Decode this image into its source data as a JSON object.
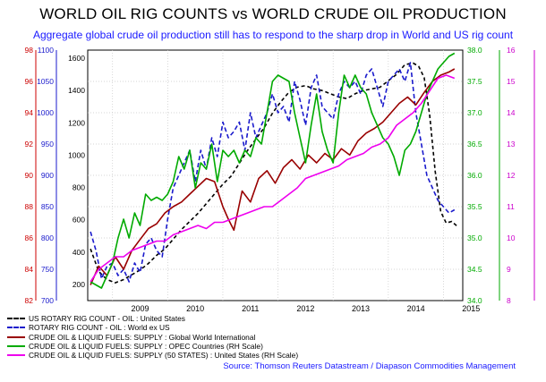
{
  "title": "WORLD OIL RIG COUNTS vs WORLD CRUDE OIL PRODUCTION",
  "subtitle": "Aggregate global crude oil production still has to respond to the sharp drop in World and US rig count",
  "source": "Source: Thomson Reuters Datastream / Diapason Commodities Management",
  "chart_data": {
    "type": "line",
    "x_tick_labels": [
      "2009",
      "2010",
      "2011",
      "2012",
      "2013",
      "2014",
      "2015"
    ],
    "x_range": [
      2008.55,
      2015.35
    ],
    "grid": true,
    "legend_position": "bottom-left",
    "axes": {
      "red_left": {
        "ticks": [
          82,
          84,
          86,
          88,
          90,
          92,
          94,
          96,
          98
        ],
        "range": [
          82,
          98
        ],
        "color": "#cc0000"
      },
      "blue_left": {
        "ticks": [
          700,
          750,
          800,
          850,
          900,
          950,
          1000,
          1050,
          1100
        ],
        "range": [
          700,
          1100
        ],
        "color": "#1a1acc"
      },
      "black_left": {
        "ticks": [
          200,
          400,
          600,
          800,
          1000,
          1200,
          1400,
          1600
        ],
        "range": [
          100,
          1650
        ],
        "color": "#000000"
      },
      "green_right": {
        "ticks": [
          34.0,
          34.5,
          35.0,
          35.5,
          36.0,
          36.5,
          37.0,
          37.5,
          38.0
        ],
        "range": [
          34.0,
          38.0
        ],
        "color": "#00aa00"
      },
      "magenta_right": {
        "ticks": [
          8,
          9,
          10,
          11,
          12,
          13,
          14,
          15,
          16
        ],
        "range": [
          8,
          16
        ],
        "color": "#cc00cc"
      }
    },
    "series": [
      {
        "name": "US ROTARY RIG COUNT - OIL : United States",
        "axis": "black_left",
        "color": "#000000",
        "dash": "4,3",
        "x": [
          2008.6,
          2008.75,
          2008.9,
          2009.05,
          2009.2,
          2009.35,
          2009.5,
          2009.65,
          2009.8,
          2009.95,
          2010.1,
          2010.25,
          2010.4,
          2010.55,
          2010.7,
          2010.85,
          2011.0,
          2011.15,
          2011.3,
          2011.45,
          2011.6,
          2011.75,
          2011.9,
          2012.05,
          2012.2,
          2012.35,
          2012.5,
          2012.65,
          2012.8,
          2012.95,
          2013.1,
          2013.25,
          2013.4,
          2013.55,
          2013.7,
          2013.85,
          2014.0,
          2014.15,
          2014.3,
          2014.45,
          2014.55,
          2014.65,
          2014.75,
          2014.85,
          2014.95,
          2015.05,
          2015.15,
          2015.25
        ],
        "y": [
          420,
          280,
          230,
          210,
          230,
          260,
          290,
          330,
          380,
          420,
          480,
          540,
          590,
          640,
          700,
          760,
          820,
          870,
          950,
          1030,
          1100,
          1170,
          1260,
          1330,
          1390,
          1420,
          1430,
          1410,
          1400,
          1380,
          1360,
          1350,
          1380,
          1400,
          1410,
          1420,
          1460,
          1500,
          1560,
          1570,
          1550,
          1480,
          1250,
          900,
          650,
          580,
          590,
          560
        ]
      },
      {
        "name": "ROTARY RIG COUNT - OIL : World ex US",
        "axis": "blue_left",
        "color": "#1a1acc",
        "dash": "5,3",
        "x": [
          2008.6,
          2008.7,
          2008.8,
          2008.9,
          2009.0,
          2009.1,
          2009.2,
          2009.3,
          2009.4,
          2009.5,
          2009.6,
          2009.7,
          2009.8,
          2009.9,
          2010.0,
          2010.1,
          2010.2,
          2010.3,
          2010.4,
          2010.5,
          2010.6,
          2010.7,
          2010.8,
          2010.9,
          2011.0,
          2011.1,
          2011.2,
          2011.3,
          2011.4,
          2011.5,
          2011.6,
          2011.7,
          2011.8,
          2011.9,
          2012.0,
          2012.1,
          2012.2,
          2012.3,
          2012.4,
          2012.5,
          2012.6,
          2012.7,
          2012.8,
          2012.9,
          2013.0,
          2013.1,
          2013.2,
          2013.3,
          2013.4,
          2013.5,
          2013.6,
          2013.7,
          2013.8,
          2013.9,
          2014.0,
          2014.1,
          2014.2,
          2014.3,
          2014.4,
          2014.5,
          2014.6,
          2014.7,
          2014.8,
          2014.9,
          2015.0,
          2015.1,
          2015.2
        ],
        "y": [
          810,
          780,
          735,
          755,
          760,
          740,
          750,
          730,
          760,
          745,
          790,
          800,
          780,
          770,
          830,
          880,
          900,
          920,
          940,
          890,
          940,
          910,
          960,
          930,
          985,
          960,
          970,
          985,
          940,
          1000,
          960,
          980,
          1000,
          1030,
          1000,
          1010,
          985,
          1050,
          1020,
          980,
          1040,
          1060,
          1010,
          1000,
          990,
          1030,
          1050,
          1040,
          1050,
          1030,
          1060,
          1070,
          1040,
          1010,
          1050,
          1060,
          1070,
          1050,
          1080,
          1000,
          950,
          900,
          880,
          860,
          850,
          840,
          845
        ]
      },
      {
        "name": "CRUDE OIL & LIQUID FUELS: SUPPLY : Global World International",
        "axis": "red_left",
        "color": "#990000",
        "dash": "",
        "x": [
          2008.6,
          2008.75,
          2008.9,
          2009.05,
          2009.2,
          2009.35,
          2009.5,
          2009.65,
          2009.8,
          2009.95,
          2010.1,
          2010.25,
          2010.4,
          2010.55,
          2010.7,
          2010.85,
          2011.0,
          2011.1,
          2011.2,
          2011.35,
          2011.5,
          2011.65,
          2011.8,
          2011.95,
          2012.1,
          2012.25,
          2012.4,
          2012.55,
          2012.7,
          2012.85,
          2013.0,
          2013.15,
          2013.3,
          2013.45,
          2013.6,
          2013.75,
          2013.9,
          2014.05,
          2014.2,
          2014.35,
          2014.5,
          2014.65,
          2014.8,
          2014.95,
          2015.1,
          2015.2
        ],
        "y": [
          83.0,
          84.2,
          83.6,
          84.8,
          84.0,
          85.2,
          85.9,
          86.6,
          86.9,
          87.6,
          88.0,
          88.3,
          88.8,
          89.3,
          89.8,
          89.6,
          88.0,
          87.2,
          86.5,
          89.0,
          88.3,
          89.8,
          90.3,
          89.5,
          90.5,
          91.0,
          90.4,
          91.3,
          90.8,
          91.4,
          91.0,
          91.7,
          91.3,
          92.2,
          92.7,
          93.0,
          93.4,
          94.0,
          94.6,
          95.0,
          94.5,
          95.3,
          96.0,
          96.4,
          96.6,
          96.8
        ]
      },
      {
        "name": "CRUDE OIL & LIQUID FUELS: SUPPLY : OPEC Countries (RH Scale)",
        "axis": "green_right",
        "color": "#00aa00",
        "dash": "",
        "x": [
          2008.6,
          2008.7,
          2008.8,
          2008.9,
          2009.0,
          2009.1,
          2009.2,
          2009.3,
          2009.4,
          2009.5,
          2009.6,
          2009.7,
          2009.8,
          2009.9,
          2010.0,
          2010.1,
          2010.2,
          2010.3,
          2010.4,
          2010.5,
          2010.6,
          2010.7,
          2010.8,
          2010.9,
          2011.0,
          2011.1,
          2011.2,
          2011.3,
          2011.4,
          2011.5,
          2011.6,
          2011.7,
          2011.8,
          2011.9,
          2012.0,
          2012.1,
          2012.2,
          2012.3,
          2012.4,
          2012.5,
          2012.6,
          2012.7,
          2012.8,
          2012.9,
          2013.0,
          2013.1,
          2013.2,
          2013.3,
          2013.4,
          2013.5,
          2013.6,
          2013.7,
          2013.8,
          2013.9,
          2014.0,
          2014.1,
          2014.2,
          2014.3,
          2014.4,
          2014.5,
          2014.6,
          2014.7,
          2014.8,
          2014.9,
          2015.0,
          2015.1,
          2015.2
        ],
        "y": [
          34.3,
          34.25,
          34.2,
          34.4,
          34.6,
          35.0,
          35.3,
          35.0,
          35.4,
          35.2,
          35.7,
          35.6,
          35.65,
          35.6,
          35.7,
          35.9,
          36.3,
          36.1,
          36.4,
          35.8,
          36.2,
          36.1,
          36.5,
          35.9,
          36.4,
          36.3,
          36.4,
          36.2,
          36.4,
          36.3,
          36.6,
          36.5,
          37.0,
          37.5,
          37.6,
          37.55,
          37.5,
          37.0,
          36.6,
          36.2,
          36.8,
          37.3,
          36.7,
          36.4,
          36.2,
          37.0,
          37.6,
          37.4,
          37.6,
          37.4,
          37.3,
          37.0,
          36.8,
          36.6,
          36.5,
          36.3,
          36.0,
          36.4,
          36.5,
          36.7,
          37.0,
          37.3,
          37.5,
          37.7,
          37.8,
          37.9,
          37.95
        ]
      },
      {
        "name": "CRUDE OIL & LIQUID FUELS: SUPPLY (50 STATES) : United States (RH Scale)",
        "axis": "magenta_right",
        "color": "#ee00ee",
        "dash": "",
        "x": [
          2008.6,
          2008.75,
          2008.9,
          2009.05,
          2009.2,
          2009.35,
          2009.5,
          2009.65,
          2009.8,
          2009.95,
          2010.1,
          2010.25,
          2010.4,
          2010.55,
          2010.7,
          2010.85,
          2011.0,
          2011.15,
          2011.3,
          2011.45,
          2011.6,
          2011.75,
          2011.9,
          2012.05,
          2012.2,
          2012.35,
          2012.5,
          2012.65,
          2012.8,
          2012.95,
          2013.1,
          2013.25,
          2013.4,
          2013.55,
          2013.7,
          2013.85,
          2014.0,
          2014.15,
          2014.3,
          2014.45,
          2014.6,
          2014.75,
          2014.9,
          2015.05,
          2015.2
        ],
        "y": [
          8.6,
          9.0,
          9.2,
          9.4,
          9.4,
          9.6,
          9.7,
          9.8,
          9.9,
          9.9,
          10.1,
          10.2,
          10.3,
          10.4,
          10.3,
          10.5,
          10.5,
          10.6,
          10.7,
          10.8,
          10.9,
          11.0,
          11.0,
          11.2,
          11.4,
          11.6,
          11.9,
          12.0,
          12.1,
          12.2,
          12.3,
          12.5,
          12.6,
          12.7,
          12.9,
          13.0,
          13.2,
          13.6,
          13.8,
          14.0,
          14.3,
          14.7,
          15.1,
          15.2,
          15.1
        ]
      }
    ]
  }
}
